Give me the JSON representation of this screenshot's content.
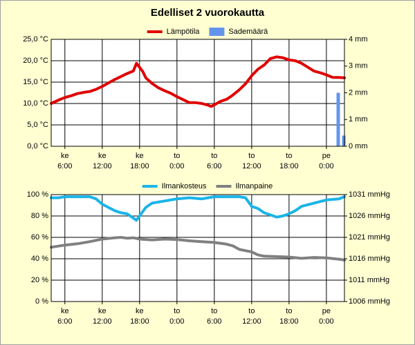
{
  "title": "Edelliset 2 vuorokautta",
  "chart_data": [
    {
      "type": "line",
      "xlim": [
        3.8,
        50.9
      ],
      "xticks": [
        {
          "value": 6,
          "day": "ke",
          "label": "6:00"
        },
        {
          "value": 12,
          "day": "ke",
          "label": "12:00"
        },
        {
          "value": 18,
          "day": "ke",
          "label": "18:00"
        },
        {
          "value": 24,
          "day": "to",
          "label": "0:00"
        },
        {
          "value": 30,
          "day": "to",
          "label": "6:00"
        },
        {
          "value": 36,
          "day": "to",
          "label": "12:00"
        },
        {
          "value": 42,
          "day": "to",
          "label": "18:00"
        },
        {
          "value": 48,
          "day": "pe",
          "label": "0:00"
        }
      ],
      "ylim": [
        0,
        25
      ],
      "yticks": [
        {
          "value": 0,
          "label": "0,0 °C"
        },
        {
          "value": 5,
          "label": "5,0 °C"
        },
        {
          "value": 10,
          "label": "10,0 °C"
        },
        {
          "value": 15,
          "label": "15,0 °C"
        },
        {
          "value": 20,
          "label": "20,0 °C"
        },
        {
          "value": 25,
          "label": "25,0 °C"
        }
      ],
      "y2lim": [
        0,
        4
      ],
      "y2ticks": [
        {
          "value": 0,
          "label": "0 mm"
        },
        {
          "value": 1,
          "label": "1 mm"
        },
        {
          "value": 2,
          "label": "2 mm"
        },
        {
          "value": 3,
          "label": "3 mm"
        },
        {
          "value": 4,
          "label": "4 mm"
        }
      ],
      "grid": true,
      "series": [
        {
          "name": "Lämpötila",
          "type": "line",
          "color": "#e00000",
          "x": [
            3.8,
            5,
            6,
            7,
            8,
            9,
            10,
            11,
            12,
            13,
            14,
            15,
            16,
            17,
            17.5,
            18.5,
            19,
            20,
            21,
            22,
            23,
            24,
            25,
            26,
            27,
            28,
            29,
            29.5,
            30,
            31,
            32,
            33,
            34,
            35,
            36,
            37,
            38,
            39,
            40,
            41,
            42,
            43,
            44,
            45,
            46,
            47,
            48,
            49,
            50,
            50.9
          ],
          "values": [
            10.0,
            10.8,
            11.4,
            11.8,
            12.3,
            12.6,
            12.8,
            13.3,
            14.0,
            14.8,
            15.6,
            16.3,
            17.0,
            17.6,
            19.4,
            17.5,
            16.0,
            14.7,
            13.7,
            13.0,
            12.4,
            11.6,
            10.9,
            10.2,
            10.2,
            10.0,
            9.6,
            9.3,
            9.7,
            10.5,
            11.0,
            12.0,
            13.2,
            14.6,
            16.5,
            18.0,
            19.0,
            20.5,
            20.9,
            20.7,
            20.2,
            20.0,
            19.4,
            18.5,
            17.6,
            17.2,
            16.7,
            16.1,
            16.1,
            16.0
          ]
        },
        {
          "name": "Sademäärä",
          "type": "bar",
          "axis": "y2",
          "color": "#6495ed",
          "x": [
            49.9,
            50.8
          ],
          "values": [
            2.0,
            0.4
          ]
        }
      ]
    },
    {
      "type": "line",
      "xlim": [
        3.8,
        50.9
      ],
      "xticks": [
        {
          "value": 6,
          "day": "ke",
          "label": "6:00"
        },
        {
          "value": 12,
          "day": "ke",
          "label": "12:00"
        },
        {
          "value": 18,
          "day": "ke",
          "label": "18:00"
        },
        {
          "value": 24,
          "day": "to",
          "label": "0:00"
        },
        {
          "value": 30,
          "day": "to",
          "label": "6:00"
        },
        {
          "value": 36,
          "day": "to",
          "label": "12:00"
        },
        {
          "value": 42,
          "day": "to",
          "label": "18:00"
        },
        {
          "value": 48,
          "day": "pe",
          "label": "0:00"
        }
      ],
      "ylim": [
        0,
        100
      ],
      "yticks": [
        {
          "value": 0,
          "label": "0 %"
        },
        {
          "value": 20,
          "label": "20 %"
        },
        {
          "value": 40,
          "label": "40 %"
        },
        {
          "value": 60,
          "label": "60 %"
        },
        {
          "value": 80,
          "label": "80 %"
        },
        {
          "value": 100,
          "label": "100 %"
        }
      ],
      "y2lim": [
        1006,
        1031
      ],
      "y2ticks": [
        {
          "value": 1006,
          "label": "1006 mmHg"
        },
        {
          "value": 1011,
          "label": "1011 mmHg"
        },
        {
          "value": 1016,
          "label": "1016 mmHg"
        },
        {
          "value": 1021,
          "label": "1021 mmHg"
        },
        {
          "value": 1026,
          "label": "1026 mmHg"
        },
        {
          "value": 1031,
          "label": "1031 mmHg"
        }
      ],
      "grid": true,
      "series": [
        {
          "name": "Ilmankosteus",
          "type": "line",
          "color": "#1ab4e8",
          "x": [
            3.8,
            5,
            6,
            8,
            10,
            11,
            12,
            13,
            14,
            15,
            16,
            17,
            17.5,
            18,
            19,
            20,
            22,
            24,
            26,
            28,
            29,
            30,
            32,
            34,
            35,
            36,
            37,
            38,
            39,
            40,
            41,
            42,
            43,
            44,
            46,
            48,
            50,
            50.9
          ],
          "values": [
            97,
            97,
            98,
            98,
            98,
            96,
            91,
            88,
            85,
            83,
            82,
            78,
            76,
            80,
            88,
            92,
            94,
            96,
            97,
            96,
            97,
            98,
            98,
            98,
            97,
            89,
            87,
            83,
            81,
            79,
            80,
            82,
            85,
            89,
            92,
            95,
            96,
            98
          ]
        },
        {
          "name": "Ilmanpaine",
          "type": "line",
          "axis": "y2",
          "color": "#808080",
          "x": [
            3.8,
            6,
            8,
            10,
            12,
            14,
            15,
            16,
            17,
            18,
            20,
            22,
            24,
            26,
            28,
            30,
            32,
            33,
            34,
            36,
            37,
            38,
            40,
            42,
            44,
            46,
            48,
            50,
            50.9
          ],
          "values": [
            1018.7,
            1019.2,
            1019.5,
            1020.0,
            1020.6,
            1020.9,
            1021.0,
            1020.8,
            1020.9,
            1020.6,
            1020.4,
            1020.6,
            1020.5,
            1020.2,
            1020.0,
            1019.8,
            1019.4,
            1019.0,
            1018.2,
            1017.6,
            1016.9,
            1016.6,
            1016.5,
            1016.4,
            1016.1,
            1016.3,
            1016.2,
            1015.9,
            1015.7
          ]
        }
      ]
    }
  ]
}
